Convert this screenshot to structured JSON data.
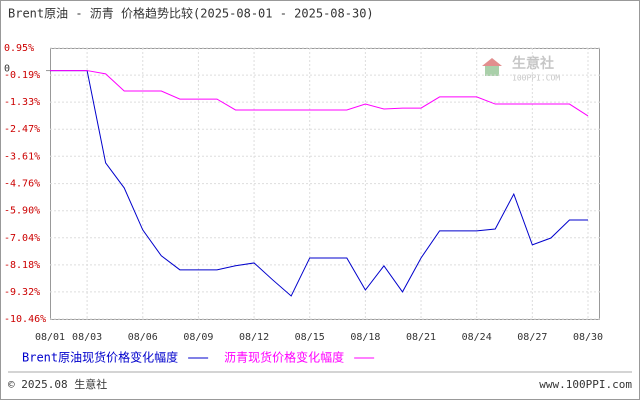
{
  "chart_data": {
    "type": "line",
    "title": "Brent原油 - 沥青 价格趋势比较(2025-08-01 - 2025-08-30)",
    "categories": [
      "08/01",
      null,
      "08/03",
      null,
      null,
      "08/06",
      null,
      null,
      "08/09",
      null,
      null,
      "08/12",
      null,
      null,
      "08/15",
      null,
      null,
      "08/18",
      null,
      null,
      "08/21",
      null,
      null,
      "08/24",
      null,
      null,
      "08/27",
      null,
      null,
      "08/30"
    ],
    "series": [
      {
        "name": "Brent原油现货价格变化幅度",
        "color": "#0000cc",
        "values": [
          0,
          0,
          0,
          -3.89,
          -4.94,
          -6.71,
          -7.8,
          -8.39,
          -8.39,
          -8.39,
          -8.22,
          -8.1,
          -8.81,
          -9.49,
          -7.89,
          -7.89,
          -7.89,
          -9.24,
          -8.22,
          -9.32,
          -7.89,
          -6.75,
          -6.75,
          -6.75,
          -6.67,
          -5.2,
          -7.34,
          -7.05,
          -6.29,
          -6.29
        ]
      },
      {
        "name": "沥青现货价格变化幅度",
        "color": "#ff00ff",
        "values": [
          0,
          0,
          0,
          -0.14,
          -0.86,
          -0.86,
          -0.86,
          -1.2,
          -1.2,
          -1.2,
          -1.66,
          -1.66,
          -1.66,
          -1.66,
          -1.66,
          -1.66,
          -1.66,
          -1.41,
          -1.62,
          -1.58,
          -1.58,
          -1.11,
          -1.11,
          -1.11,
          -1.41,
          -1.41,
          -1.41,
          -1.41,
          -1.41,
          -1.91
        ]
      }
    ],
    "ylim": [
      -10.46,
      0.95
    ],
    "yticks": [
      {
        "value": 0.95,
        "label": "0.95%"
      },
      0,
      {
        "value": -0.19,
        "label": "-0.19%"
      },
      {
        "value": -1.33,
        "label": "-1.33%"
      },
      {
        "value": -2.47,
        "label": "-2.47%"
      },
      {
        "value": -3.61,
        "label": "-3.61%"
      },
      {
        "value": -4.76,
        "label": "-4.76%"
      },
      {
        "value": -5.9,
        "label": "-5.90%"
      },
      {
        "value": -7.04,
        "label": "-7.04%"
      },
      {
        "value": -8.18,
        "label": "-8.18%"
      },
      {
        "value": -9.32,
        "label": "-9.32%"
      },
      {
        "value": -10.46,
        "label": "-10.46%"
      }
    ],
    "grid": true,
    "watermark": {
      "name": "生意社",
      "site": "100PPI.COM"
    },
    "footer": {
      "left": "© 2025.08 生意社",
      "right": "www.100PPI.com"
    }
  }
}
